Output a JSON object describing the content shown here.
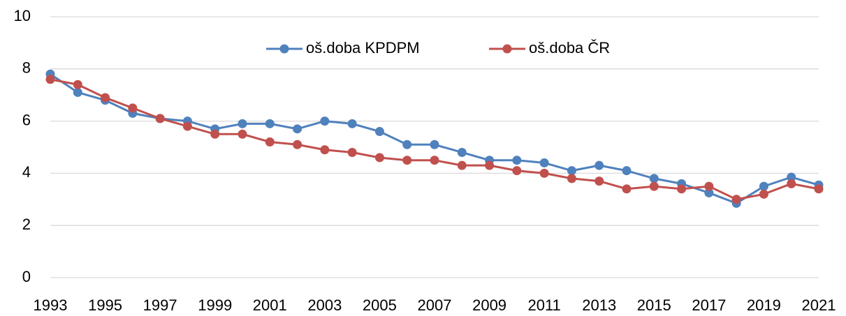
{
  "chart_data": {
    "type": "line",
    "x": [
      1993,
      1994,
      1995,
      1996,
      1997,
      1998,
      1999,
      2000,
      2001,
      2002,
      2003,
      2004,
      2005,
      2006,
      2007,
      2008,
      2009,
      2010,
      2011,
      2012,
      2013,
      2014,
      2015,
      2016,
      2017,
      2018,
      2019,
      2020,
      2021
    ],
    "series": [
      {
        "name": "oš.doba KPDPM",
        "color": "#4f81bd",
        "values": [
          7.8,
          7.1,
          6.8,
          6.3,
          6.1,
          6.0,
          5.7,
          5.9,
          5.9,
          5.7,
          6.0,
          5.9,
          5.6,
          5.1,
          5.1,
          4.8,
          4.5,
          4.5,
          4.4,
          4.1,
          4.3,
          4.1,
          3.8,
          3.6,
          3.25,
          2.85,
          3.5,
          3.85,
          3.55
        ]
      },
      {
        "name": "oš.doba ČR",
        "color": "#c0504d",
        "values": [
          7.6,
          7.4,
          6.9,
          6.5,
          6.1,
          5.8,
          5.5,
          5.5,
          5.2,
          5.1,
          4.9,
          4.8,
          4.6,
          4.5,
          4.5,
          4.3,
          4.3,
          4.1,
          4.0,
          3.8,
          3.7,
          3.4,
          3.5,
          3.4,
          3.5,
          3.0,
          3.2,
          3.6,
          3.4
        ]
      }
    ],
    "xlim": [
      1993,
      2021
    ],
    "xticks": [
      1993,
      1995,
      1997,
      1999,
      2001,
      2003,
      2005,
      2007,
      2009,
      2011,
      2013,
      2015,
      2017,
      2019,
      2021
    ],
    "ylim": [
      0,
      10
    ],
    "yticks": [
      0,
      2,
      4,
      6,
      8,
      10
    ],
    "grid": true,
    "legend": "top"
  }
}
